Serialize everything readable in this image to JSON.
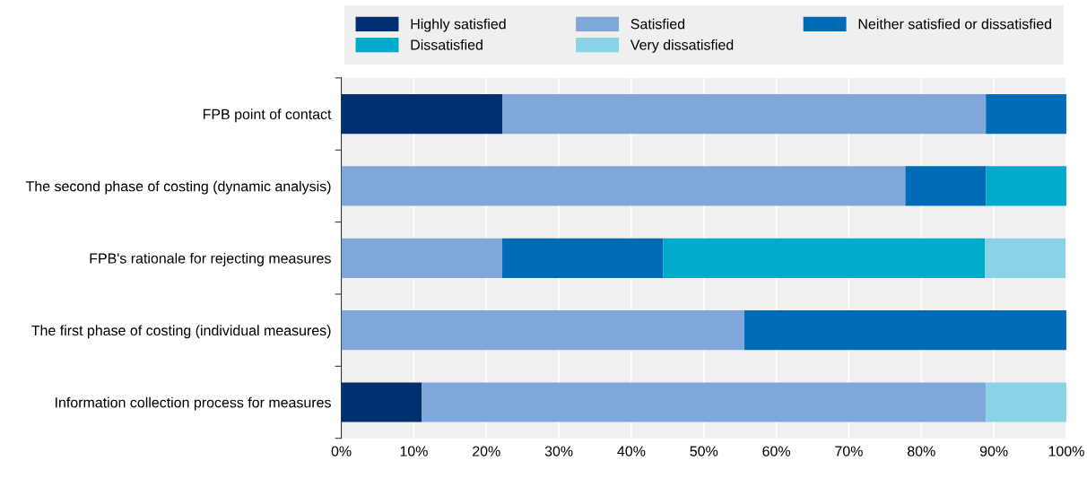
{
  "chart_data": {
    "type": "bar",
    "orientation": "horizontal",
    "stacked": true,
    "categories": [
      "FPB point of contact",
      "The second phase of costing (dynamic analysis)",
      "FPB's rationale for rejecting measures",
      "The first phase of costing (individual measures)",
      "Information collection process for measures"
    ],
    "series": [
      {
        "name": "Highly satisfied",
        "color": "#003070",
        "values": [
          22.2,
          null,
          null,
          null,
          11.1
        ]
      },
      {
        "name": "Satisfied",
        "color": "#7fa7d9",
        "values": [
          66.7,
          77.8,
          22.2,
          55.6,
          77.8
        ]
      },
      {
        "name": "Neither satisfied or dissatisfied",
        "color": "#006bb6",
        "values": [
          11.1,
          11.1,
          22.2,
          44.4,
          null
        ]
      },
      {
        "name": "Dissatisfied",
        "color": "#00aacc",
        "values": [
          null,
          11.1,
          44.4,
          null,
          null
        ]
      },
      {
        "name": "Very dissatisfied",
        "color": "#8ad3e6",
        "values": [
          null,
          null,
          11.1,
          null,
          11.1
        ]
      }
    ],
    "xlim": [
      0,
      100
    ],
    "xticks": [
      {
        "value": 0,
        "label": "0%"
      },
      {
        "value": 10,
        "label": "10%"
      },
      {
        "value": 20,
        "label": "20%"
      },
      {
        "value": 30,
        "label": "30%"
      },
      {
        "value": 40,
        "label": "40%"
      },
      {
        "value": 50,
        "label": "50%"
      },
      {
        "value": 60,
        "label": "60%"
      },
      {
        "value": 70,
        "label": "70%"
      },
      {
        "value": 80,
        "label": "80%"
      },
      {
        "value": 90,
        "label": "90%"
      },
      {
        "value": 100,
        "label": "100%"
      }
    ],
    "grid": "x",
    "legend": "top"
  }
}
